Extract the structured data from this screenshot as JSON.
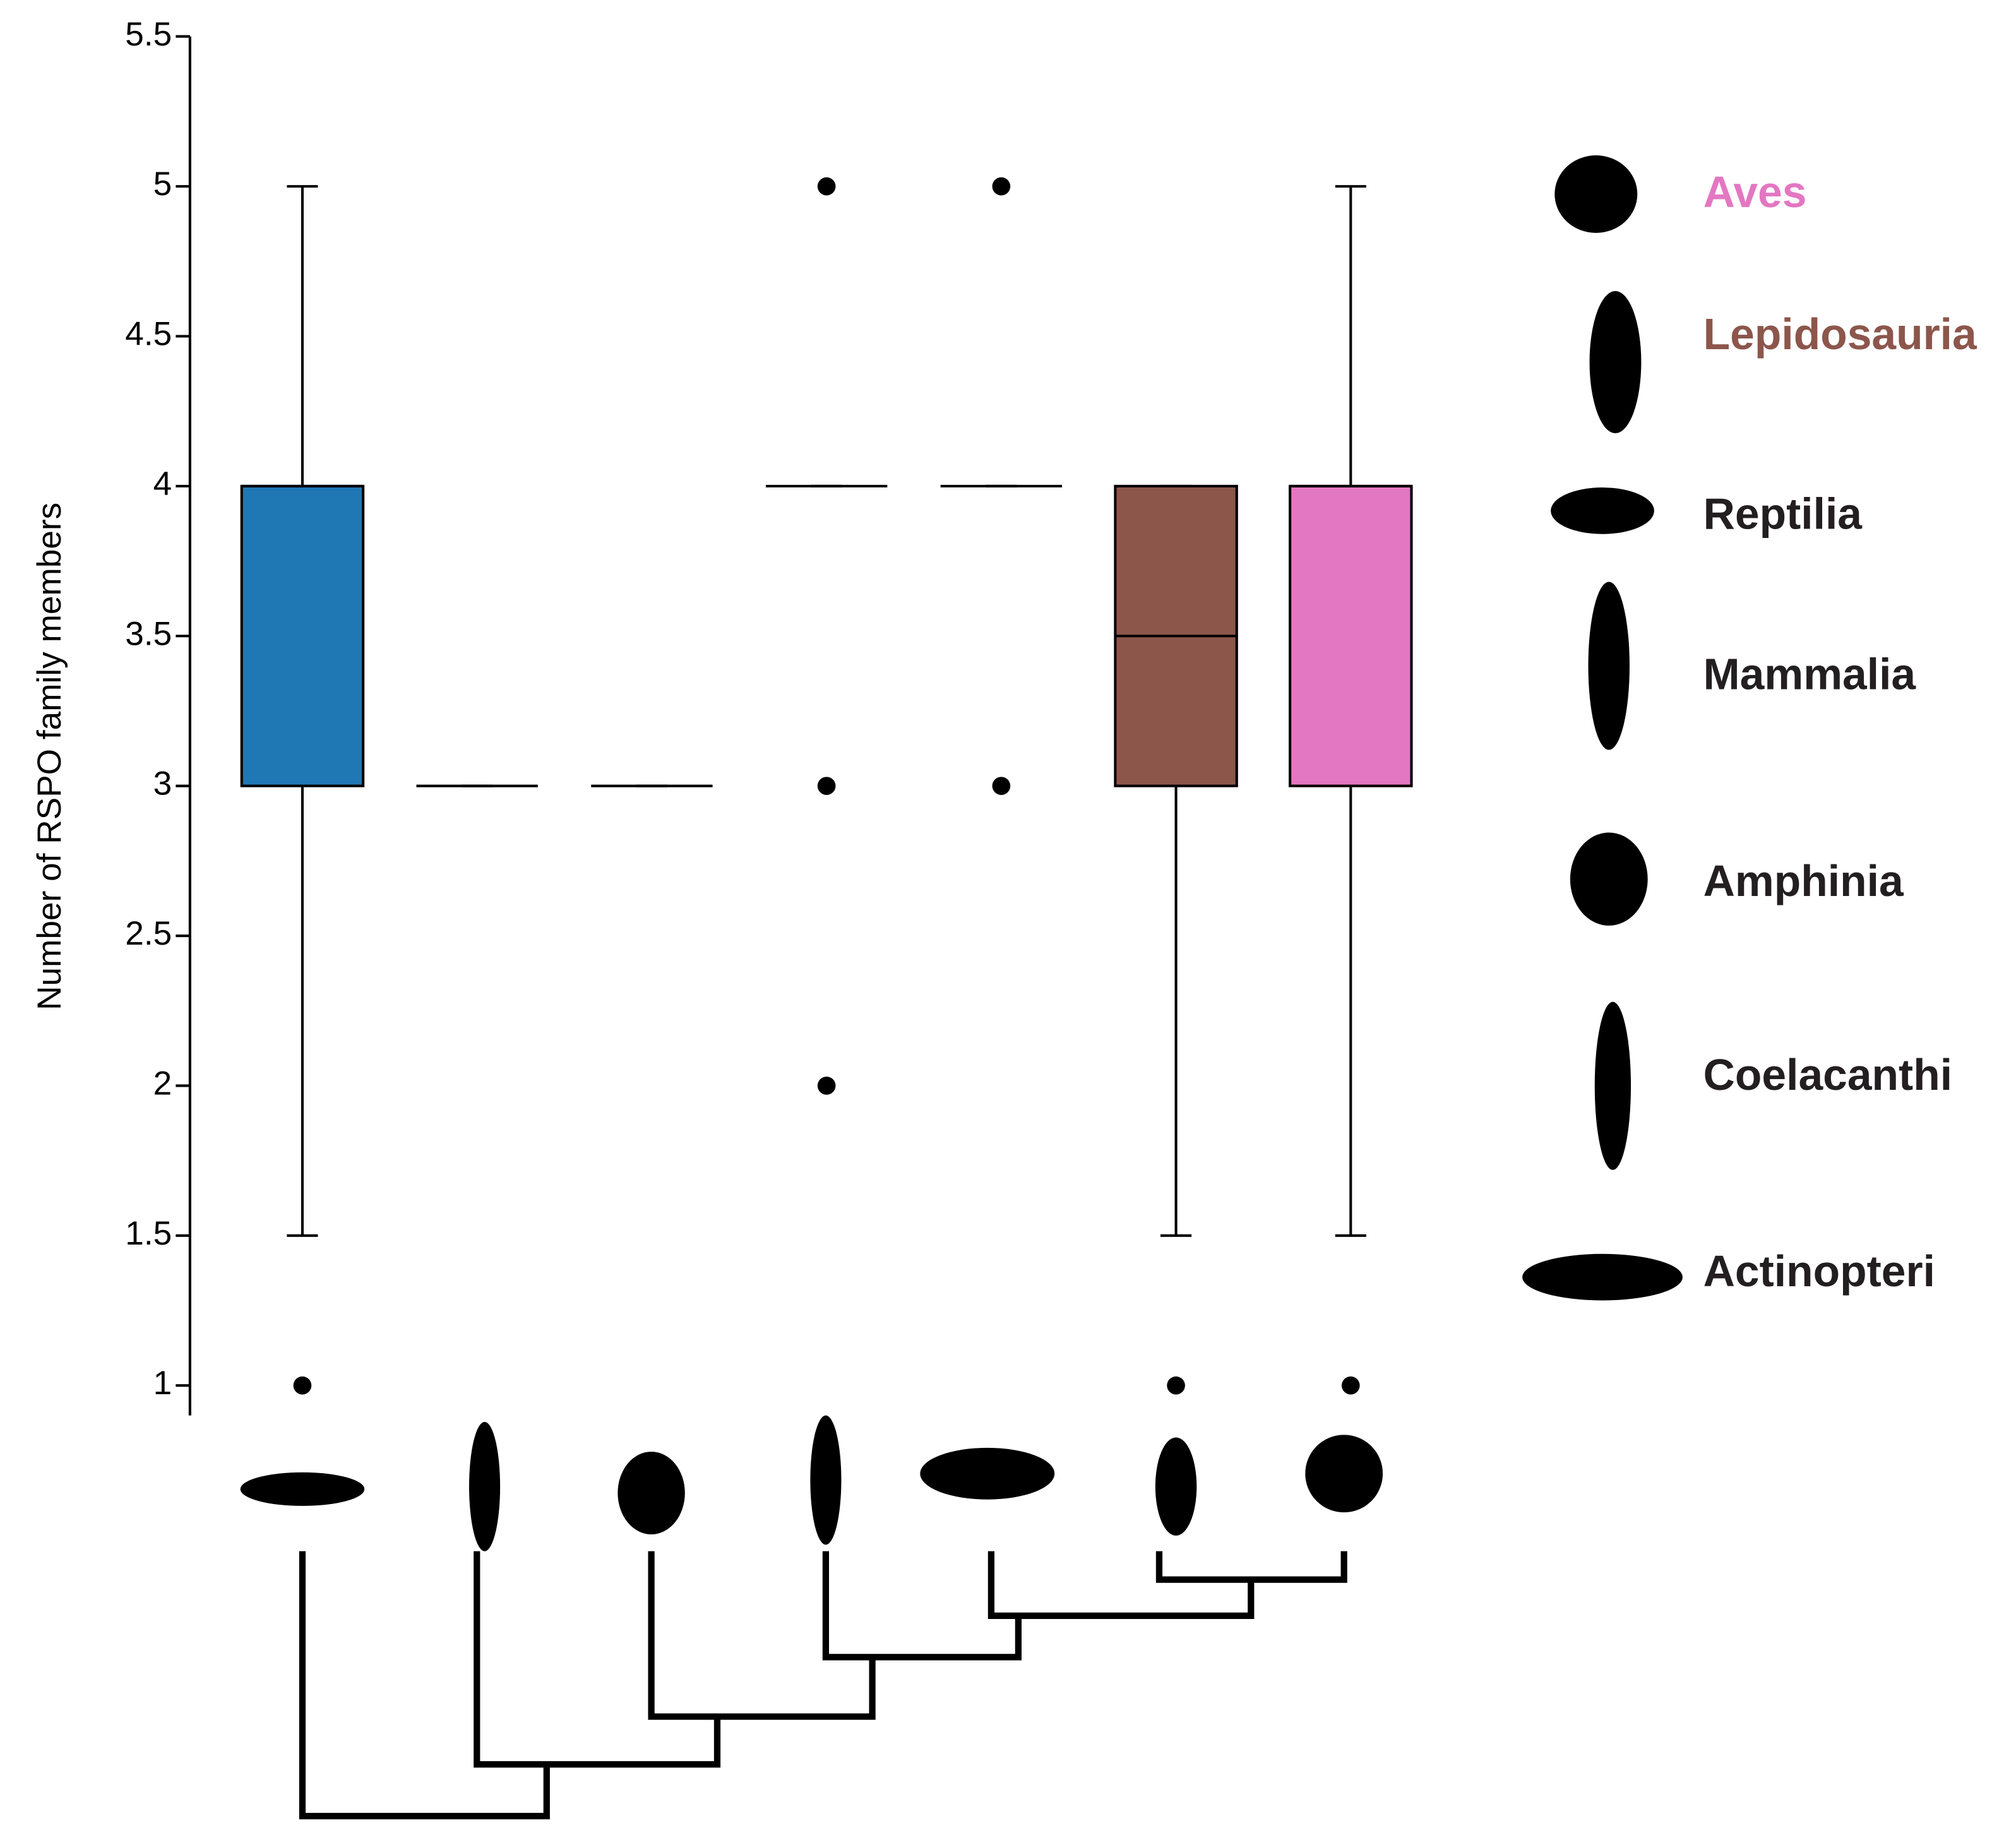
{
  "chart_data": {
    "type": "box",
    "y_label": "Number of RSPO family members",
    "ylim": [
      0.9,
      5.5
    ],
    "yticks": [
      1,
      1.5,
      2,
      2.5,
      3,
      3.5,
      4,
      4.5,
      5,
      5.5
    ],
    "series": [
      {
        "name": "Actinopteri",
        "color": "#1f77b4",
        "label_color": "#231f20",
        "min": 1.5,
        "q1": 3,
        "median": 4,
        "q3": 4,
        "max": 5,
        "outliers": [
          1
        ]
      },
      {
        "name": "Coelacanthi",
        "label_color": "#231f20",
        "min": 3,
        "q1": 3,
        "median": 3,
        "q3": 3,
        "max": 3,
        "outliers": []
      },
      {
        "name": "Amphinia",
        "label_color": "#231f20",
        "min": 3,
        "q1": 3,
        "median": 3,
        "q3": 3,
        "max": 3,
        "outliers": []
      },
      {
        "name": "Mammalia",
        "label_color": "#231f20",
        "min": 4,
        "q1": 4,
        "median": 4,
        "q3": 4,
        "max": 4,
        "outliers": [
          5,
          3,
          2
        ]
      },
      {
        "name": "Reptilia",
        "label_color": "#231f20",
        "min": 4,
        "q1": 4,
        "median": 4,
        "q3": 4,
        "max": 4,
        "outliers": [
          5,
          3
        ]
      },
      {
        "name": "Lepidosauria",
        "color": "#8c564b",
        "label_color": "#8c564b",
        "min": 1.5,
        "q1": 3,
        "median": 3.5,
        "q3": 4,
        "max": 4,
        "outliers": [
          1
        ]
      },
      {
        "name": "Aves",
        "color": "#e377c2",
        "label_color": "#e377c2",
        "min": 1.5,
        "q1": 3,
        "median": 4,
        "q3": 4,
        "max": 5,
        "outliers": [
          1
        ]
      }
    ]
  }
}
